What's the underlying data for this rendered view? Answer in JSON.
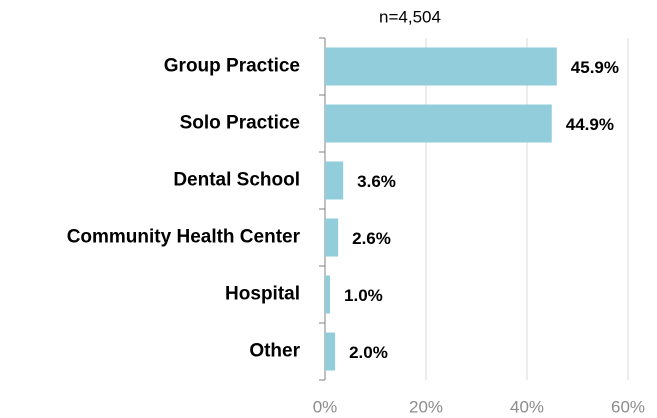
{
  "chart_data": {
    "type": "bar",
    "orientation": "horizontal",
    "subtitle": "n=4,504",
    "categories": [
      "Group Practice",
      "Solo Practice",
      "Dental School",
      "Community Health Center",
      "Hospital",
      "Other"
    ],
    "values": [
      45.9,
      44.9,
      3.6,
      2.6,
      1.0,
      2.0
    ],
    "value_labels": [
      "45.9%",
      "44.9%",
      "3.6%",
      "2.6%",
      "1.0%",
      "2.0%"
    ],
    "color": "#92cddc",
    "xlim": [
      0,
      60
    ],
    "xticks": [
      {
        "value": 0,
        "label": "0%"
      },
      {
        "value": 20,
        "label": "20%"
      },
      {
        "value": 40,
        "label": "40%"
      },
      {
        "value": 60,
        "label": "60%"
      }
    ],
    "grid": true
  }
}
